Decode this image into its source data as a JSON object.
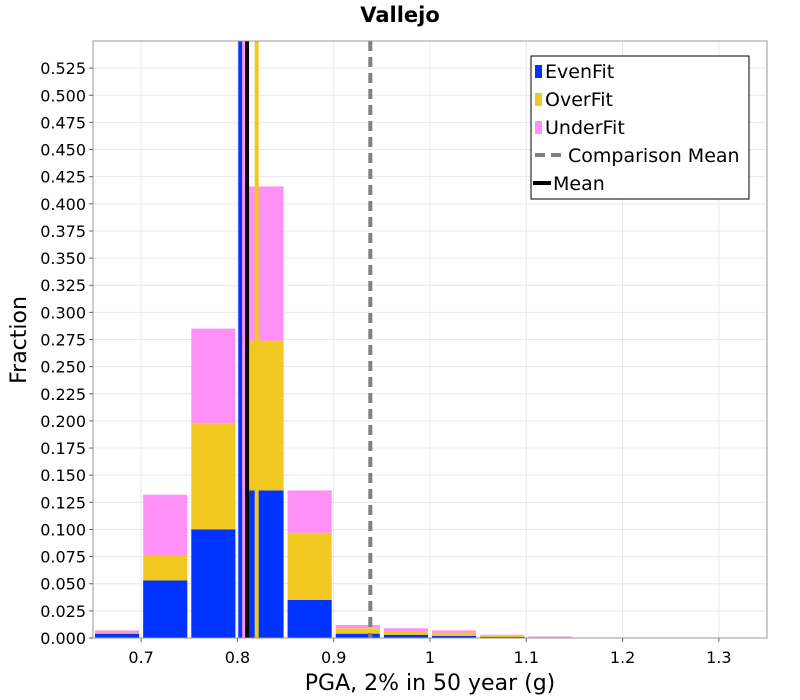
{
  "chart_data": {
    "type": "bar",
    "stacked": true,
    "title": "Vallejo",
    "xlabel": "PGA, 2% in 50 year (g)",
    "ylabel": "Fraction",
    "xlim": [
      0.65,
      1.35
    ],
    "ylim": [
      0,
      0.55
    ],
    "x_ticks": [
      0.7,
      0.8,
      0.9,
      1.0,
      1.1,
      1.2,
      1.3
    ],
    "x_tick_labels": [
      "0.7",
      "0.8",
      "0.9",
      "1",
      "1.1",
      "1.2",
      "1.3"
    ],
    "y_ticks": [
      0,
      0.025,
      0.05,
      0.075,
      0.1,
      0.125,
      0.15,
      0.175,
      0.2,
      0.225,
      0.25,
      0.275,
      0.3,
      0.325,
      0.35,
      0.375,
      0.4,
      0.425,
      0.45,
      0.475,
      0.5,
      0.525
    ],
    "y_tick_labels": [
      "0.000",
      "0.025",
      "0.050",
      "0.075",
      "0.100",
      "0.125",
      "0.150",
      "0.175",
      "0.200",
      "0.225",
      "0.250",
      "0.275",
      "0.300",
      "0.325",
      "0.350",
      "0.375",
      "0.400",
      "0.425",
      "0.450",
      "0.475",
      "0.500",
      "0.525"
    ],
    "bin_width": 0.05,
    "bin_centers": [
      0.675,
      0.725,
      0.775,
      0.825,
      0.875,
      0.925,
      0.975,
      1.025,
      1.075,
      1.125
    ],
    "series": [
      {
        "name": "EvenFit",
        "color": "#0033ff",
        "values": [
          0.004,
          0.053,
          0.1,
          0.136,
          0.035,
          0.004,
          0.003,
          0.002,
          0.001,
          0.0005
        ]
      },
      {
        "name": "OverFit",
        "color": "#f0c820",
        "values": [
          0.001,
          0.023,
          0.098,
          0.138,
          0.062,
          0.005,
          0.003,
          0.003,
          0.001,
          0.0005
        ]
      },
      {
        "name": "UnderFit",
        "color": "#ff90f8",
        "values": [
          0.002,
          0.056,
          0.087,
          0.142,
          0.039,
          0.003,
          0.003,
          0.002,
          0.001,
          0.0005
        ]
      }
    ],
    "lines": [
      {
        "name": "EvenFit Mean",
        "x": 0.803,
        "color": "#0033ff",
        "style": "solid",
        "show_in_legend": false
      },
      {
        "name": "UnderFit Mean",
        "x": 0.807,
        "color": "#ff90f8",
        "style": "solid",
        "show_in_legend": false
      },
      {
        "name": "OverFit Mean",
        "x": 0.82,
        "color": "#f0c820",
        "style": "solid",
        "show_in_legend": false
      },
      {
        "name": "Mean",
        "x": 0.81,
        "color": "#000000",
        "style": "solid",
        "show_in_legend": true
      },
      {
        "name": "Comparison Mean",
        "x": 0.938,
        "color": "#808080",
        "style": "dashed",
        "show_in_legend": true
      }
    ],
    "legend": {
      "position": "top-right",
      "entries": [
        {
          "label": "EvenFit",
          "kind": "box",
          "color": "#0033ff"
        },
        {
          "label": "OverFit",
          "kind": "box",
          "color": "#f0c820"
        },
        {
          "label": "UnderFit",
          "kind": "box",
          "color": "#ff90f8"
        },
        {
          "label": "Comparison Mean",
          "kind": "dash",
          "color": "#808080"
        },
        {
          "label": "Mean",
          "kind": "line",
          "color": "#000000"
        }
      ]
    },
    "grid": true
  }
}
